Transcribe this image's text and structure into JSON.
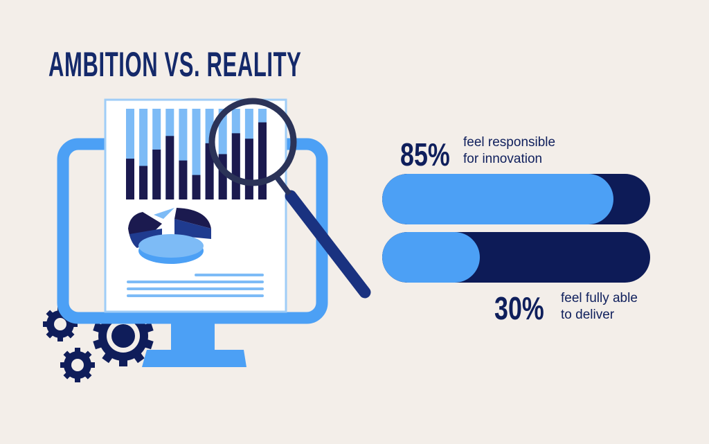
{
  "title": "AMBITION VS. REALITY",
  "colors": {
    "background": "#f3eee9",
    "light_blue": "#4ca0f5",
    "navy": "#0d1b57"
  },
  "chart_data": {
    "type": "bar",
    "orientation": "horizontal",
    "xlim": [
      0,
      100
    ],
    "categories": [
      "feel responsible for innovation",
      "feel fully able to deliver"
    ],
    "values": [
      85,
      30
    ],
    "labels": [
      {
        "value": "85%",
        "line1": "feel responsible",
        "line2": "for innovation"
      },
      {
        "value": "30%",
        "line1": "feel fully able",
        "line2": "to deliver"
      }
    ]
  },
  "illustration": {
    "icons": [
      "monitor-icon",
      "report-document-icon",
      "magnifying-glass-icon",
      "gears-icon"
    ],
    "report_bar_levels": [
      0.45,
      0.37,
      0.55,
      0.7,
      0.43,
      0.27,
      0.62,
      0.5,
      0.73,
      0.67,
      0.85
    ]
  }
}
